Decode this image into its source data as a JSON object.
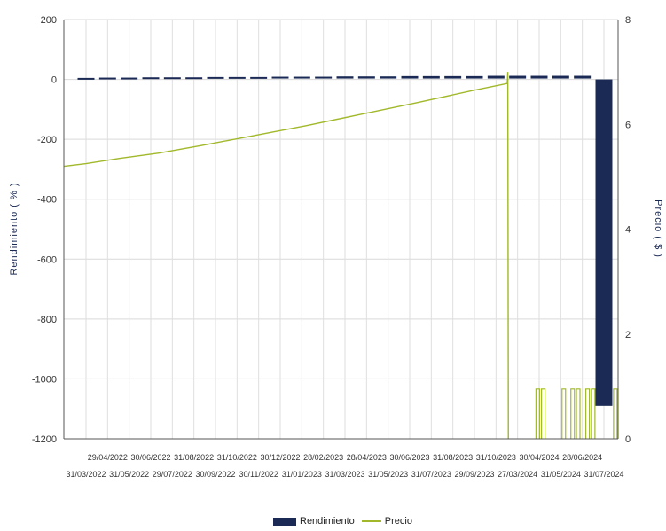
{
  "chart_data": {
    "type": "bar+line",
    "title": "",
    "y_left_label": "Rendimiento ( % )",
    "y_right_label": "Precio ( $ )",
    "y_left_ticks": [
      200,
      0,
      -200,
      -400,
      -600,
      -800,
      -1000,
      -1200
    ],
    "y_left_lim": [
      -1200,
      200
    ],
    "y_right_ticks": [
      8,
      6,
      4,
      2,
      0
    ],
    "y_right_lim": [
      0,
      8
    ],
    "x_labels_upper": [
      "29/04/2022",
      "30/06/2022",
      "31/08/2022",
      "31/10/2022",
      "30/12/2022",
      "28/02/2023",
      "28/04/2023",
      "30/06/2023",
      "31/08/2023",
      "31/10/2023",
      "30/04/2024",
      "28/06/2024"
    ],
    "x_labels_lower": [
      "31/03/2022",
      "31/05/2022",
      "29/07/2022",
      "30/09/2022",
      "30/11/2022",
      "31/01/2023",
      "31/03/2023",
      "31/05/2023",
      "31/07/2023",
      "29/09/2023",
      "27/03/2024",
      "31/05/2024",
      "31/07/2024"
    ],
    "categories": [
      "31/03/2022",
      "29/04/2022",
      "31/05/2022",
      "30/06/2022",
      "29/07/2022",
      "31/08/2022",
      "30/09/2022",
      "31/10/2022",
      "30/11/2022",
      "30/12/2022",
      "31/01/2023",
      "28/02/2023",
      "31/03/2023",
      "28/04/2023",
      "31/05/2023",
      "30/06/2023",
      "31/07/2023",
      "31/08/2023",
      "29/09/2023",
      "31/10/2023",
      "27/03/2024",
      "30/04/2024",
      "31/05/2024",
      "28/06/2024",
      "31/07/2024"
    ],
    "series": [
      {
        "name": "Rendimiento",
        "type": "bar",
        "axis": "left",
        "color": "#1b2a55",
        "values": [
          2,
          3,
          3,
          4,
          4,
          4,
          5,
          5,
          5,
          6,
          6,
          6,
          7,
          7,
          7,
          8,
          8,
          8,
          8,
          9,
          9,
          9,
          9,
          9,
          -1090
        ]
      },
      {
        "name": "Precio",
        "type": "line",
        "axis": "right",
        "color": "#a2b82a",
        "points": [
          {
            "x": 0.0,
            "y": 5.2
          },
          {
            "x": 0.04,
            "y": 5.25
          },
          {
            "x": 0.1,
            "y": 5.35
          },
          {
            "x": 0.17,
            "y": 5.45
          },
          {
            "x": 0.25,
            "y": 5.6
          },
          {
            "x": 0.34,
            "y": 5.78
          },
          {
            "x": 0.44,
            "y": 5.98
          },
          {
            "x": 0.54,
            "y": 6.2
          },
          {
            "x": 0.64,
            "y": 6.42
          },
          {
            "x": 0.74,
            "y": 6.65
          },
          {
            "x": 0.8,
            "y": 6.78
          },
          {
            "x": 0.801,
            "y": 7.0
          },
          {
            "x": 0.802,
            "y": 0.0
          }
        ],
        "spikes": [
          0.855,
          0.865,
          0.902,
          0.918,
          0.928,
          0.945,
          0.955,
          0.995
        ],
        "spike_value": 0.95
      }
    ],
    "legend": [
      "Rendimiento",
      "Precio"
    ],
    "legend_position": "bottom-center",
    "grid": true
  }
}
